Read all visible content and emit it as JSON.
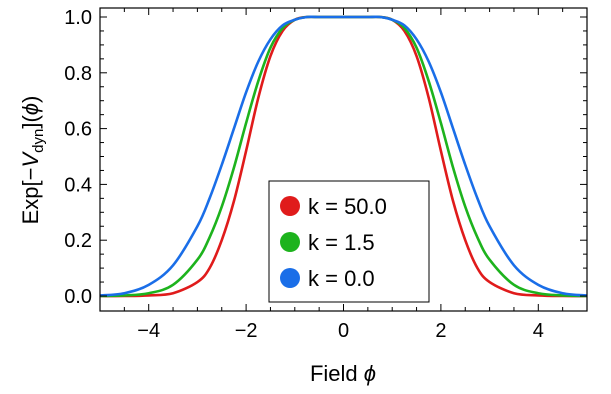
{
  "chart_data": {
    "type": "line",
    "title": "",
    "xlabel": "Field ϕ",
    "ylabel": "Exp[−V_dyn](ϕ)",
    "ylabel_parts": {
      "prefix": "Exp[−",
      "var": "V",
      "sub": "dyn",
      "suffix": "](",
      "arg": "ϕ",
      "end": ")"
    },
    "xlabel_parts": {
      "text": "Field ",
      "var": "ϕ"
    },
    "xlim": [
      -5,
      5
    ],
    "ylim": [
      0,
      1.0
    ],
    "xticks": [
      -4,
      -2,
      0,
      2,
      4
    ],
    "xtick_labels": [
      "−4",
      "−2",
      "0",
      "2",
      "4"
    ],
    "yticks": [
      0.0,
      0.2,
      0.4,
      0.6,
      0.8,
      1.0
    ],
    "ytick_labels": [
      "0.0",
      "0.2",
      "0.4",
      "0.6",
      "0.8",
      "1.0"
    ],
    "grid": false,
    "legend_position": "center-bottom",
    "series": [
      {
        "name": "k = 50.0",
        "color": "#e01b1b",
        "x": [
          -5,
          -4.5,
          -4,
          -3.5,
          -3,
          -2.75,
          -2.5,
          -2.25,
          -2,
          -1.75,
          -1.5,
          -1.25,
          -1,
          -0.75,
          -0.5,
          -0.25,
          0,
          0.25,
          0.5,
          0.75,
          1,
          1.25,
          1.5,
          1.75,
          2,
          2.25,
          2.5,
          2.75,
          3,
          3.5,
          4,
          4.5,
          5
        ],
        "y": [
          0.0,
          0.0,
          0.002,
          0.01,
          0.05,
          0.1,
          0.2,
          0.34,
          0.52,
          0.71,
          0.86,
          0.95,
          0.99,
          1.0,
          1.0,
          1.0,
          1.0,
          1.0,
          1.0,
          1.0,
          0.99,
          0.95,
          0.86,
          0.71,
          0.52,
          0.34,
          0.2,
          0.1,
          0.05,
          0.01,
          0.002,
          0.0,
          0.0
        ]
      },
      {
        "name": "k = 1.5",
        "color": "#1db31d",
        "x": [
          -5,
          -4.5,
          -4,
          -3.5,
          -3,
          -2.75,
          -2.5,
          -2.25,
          -2,
          -1.75,
          -1.5,
          -1.25,
          -1,
          -0.75,
          -0.5,
          -0.25,
          0,
          0.25,
          0.5,
          0.75,
          1,
          1.25,
          1.5,
          1.75,
          2,
          2.25,
          2.5,
          2.75,
          3,
          3.5,
          4,
          4.5,
          5
        ],
        "y": [
          0.0,
          0.002,
          0.01,
          0.04,
          0.13,
          0.21,
          0.32,
          0.46,
          0.62,
          0.77,
          0.89,
          0.96,
          0.99,
          1.0,
          1.0,
          1.0,
          1.0,
          1.0,
          1.0,
          1.0,
          0.99,
          0.96,
          0.89,
          0.77,
          0.62,
          0.46,
          0.32,
          0.21,
          0.13,
          0.04,
          0.01,
          0.002,
          0.0
        ]
      },
      {
        "name": "k = 0.0",
        "color": "#1a6ee8",
        "x": [
          -5,
          -4.5,
          -4,
          -3.5,
          -3,
          -2.75,
          -2.5,
          -2.25,
          -2,
          -1.75,
          -1.5,
          -1.25,
          -1,
          -0.75,
          -0.5,
          -0.25,
          0,
          0.25,
          0.5,
          0.75,
          1,
          1.25,
          1.5,
          1.75,
          2,
          2.25,
          2.5,
          2.75,
          3,
          3.5,
          4,
          4.5,
          5
        ],
        "y": [
          0.002,
          0.01,
          0.04,
          0.11,
          0.25,
          0.35,
          0.47,
          0.6,
          0.73,
          0.84,
          0.92,
          0.97,
          0.99,
          1.0,
          1.0,
          1.0,
          1.0,
          1.0,
          1.0,
          1.0,
          0.99,
          0.97,
          0.92,
          0.84,
          0.73,
          0.6,
          0.47,
          0.35,
          0.25,
          0.11,
          0.04,
          0.01,
          0.002
        ]
      }
    ]
  }
}
